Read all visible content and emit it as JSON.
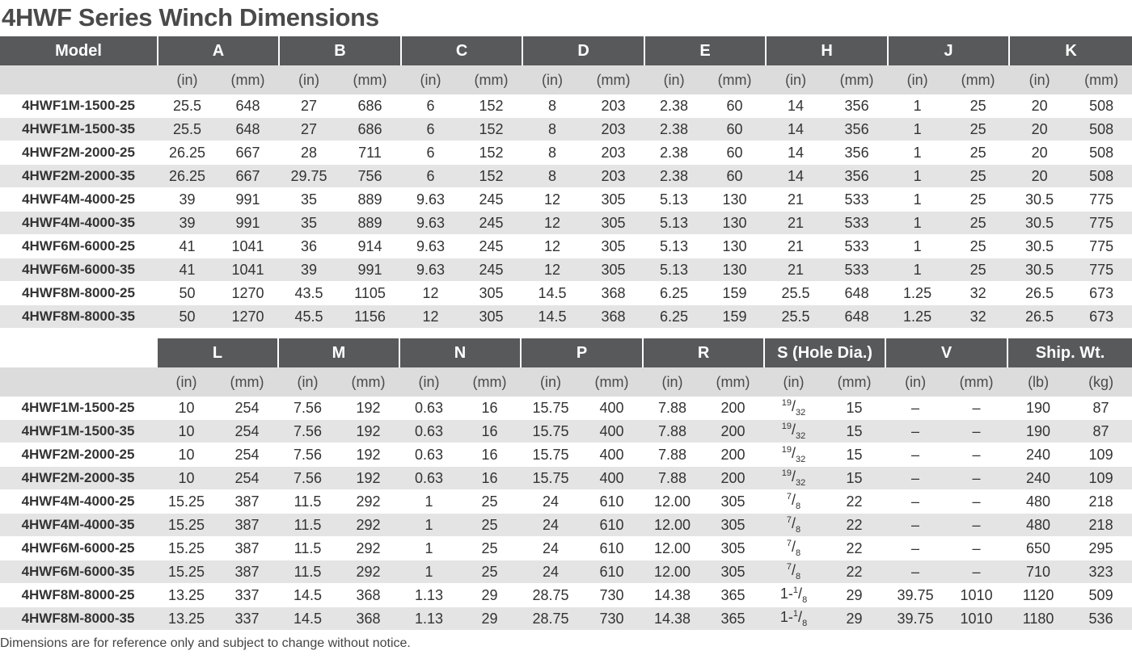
{
  "title": "4HWF Series Winch Dimensions",
  "units": {
    "in": "(in)",
    "mm": "(mm)",
    "lb": "(lb)",
    "kg": "(kg)"
  },
  "table1": {
    "model_header": "Model",
    "groups": [
      "A",
      "B",
      "C",
      "D",
      "E",
      "H",
      "J",
      "K"
    ],
    "rows": [
      [
        "4HWF1M-1500-25",
        "25.5",
        "648",
        "27",
        "686",
        "6",
        "152",
        "8",
        "203",
        "2.38",
        "60",
        "14",
        "356",
        "1",
        "25",
        "20",
        "508"
      ],
      [
        "4HWF1M-1500-35",
        "25.5",
        "648",
        "27",
        "686",
        "6",
        "152",
        "8",
        "203",
        "2.38",
        "60",
        "14",
        "356",
        "1",
        "25",
        "20",
        "508"
      ],
      [
        "4HWF2M-2000-25",
        "26.25",
        "667",
        "28",
        "711",
        "6",
        "152",
        "8",
        "203",
        "2.38",
        "60",
        "14",
        "356",
        "1",
        "25",
        "20",
        "508"
      ],
      [
        "4HWF2M-2000-35",
        "26.25",
        "667",
        "29.75",
        "756",
        "6",
        "152",
        "8",
        "203",
        "2.38",
        "60",
        "14",
        "356",
        "1",
        "25",
        "20",
        "508"
      ],
      [
        "4HWF4M-4000-25",
        "39",
        "991",
        "35",
        "889",
        "9.63",
        "245",
        "12",
        "305",
        "5.13",
        "130",
        "21",
        "533",
        "1",
        "25",
        "30.5",
        "775"
      ],
      [
        "4HWF4M-4000-35",
        "39",
        "991",
        "35",
        "889",
        "9.63",
        "245",
        "12",
        "305",
        "5.13",
        "130",
        "21",
        "533",
        "1",
        "25",
        "30.5",
        "775"
      ],
      [
        "4HWF6M-6000-25",
        "41",
        "1041",
        "36",
        "914",
        "9.63",
        "245",
        "12",
        "305",
        "5.13",
        "130",
        "21",
        "533",
        "1",
        "25",
        "30.5",
        "775"
      ],
      [
        "4HWF6M-6000-35",
        "41",
        "1041",
        "39",
        "991",
        "9.63",
        "245",
        "12",
        "305",
        "5.13",
        "130",
        "21",
        "533",
        "1",
        "25",
        "30.5",
        "775"
      ],
      [
        "4HWF8M-8000-25",
        "50",
        "1270",
        "43.5",
        "1105",
        "12",
        "305",
        "14.5",
        "368",
        "6.25",
        "159",
        "25.5",
        "648",
        "1.25",
        "32",
        "26.5",
        "673"
      ],
      [
        "4HWF8M-8000-35",
        "50",
        "1270",
        "45.5",
        "1156",
        "12",
        "305",
        "14.5",
        "368",
        "6.25",
        "159",
        "25.5",
        "648",
        "1.25",
        "32",
        "26.5",
        "673"
      ]
    ]
  },
  "table2": {
    "groups": [
      "L",
      "M",
      "N",
      "P",
      "R",
      "S (Hole Dia.)",
      "V",
      "Ship. Wt."
    ],
    "rows": [
      [
        "4HWF1M-1500-25",
        "10",
        "254",
        "7.56",
        "192",
        "0.63",
        "16",
        "15.75",
        "400",
        "7.88",
        "200",
        "19/32",
        "15",
        "–",
        "–",
        "190",
        "87"
      ],
      [
        "4HWF1M-1500-35",
        "10",
        "254",
        "7.56",
        "192",
        "0.63",
        "16",
        "15.75",
        "400",
        "7.88",
        "200",
        "19/32",
        "15",
        "–",
        "–",
        "190",
        "87"
      ],
      [
        "4HWF2M-2000-25",
        "10",
        "254",
        "7.56",
        "192",
        "0.63",
        "16",
        "15.75",
        "400",
        "7.88",
        "200",
        "19/32",
        "15",
        "–",
        "–",
        "240",
        "109"
      ],
      [
        "4HWF2M-2000-35",
        "10",
        "254",
        "7.56",
        "192",
        "0.63",
        "16",
        "15.75",
        "400",
        "7.88",
        "200",
        "19/32",
        "15",
        "–",
        "–",
        "240",
        "109"
      ],
      [
        "4HWF4M-4000-25",
        "15.25",
        "387",
        "11.5",
        "292",
        "1",
        "25",
        "24",
        "610",
        "12.00",
        "305",
        "7/8",
        "22",
        "–",
        "–",
        "480",
        "218"
      ],
      [
        "4HWF4M-4000-35",
        "15.25",
        "387",
        "11.5",
        "292",
        "1",
        "25",
        "24",
        "610",
        "12.00",
        "305",
        "7/8",
        "22",
        "–",
        "–",
        "480",
        "218"
      ],
      [
        "4HWF6M-6000-25",
        "15.25",
        "387",
        "11.5",
        "292",
        "1",
        "25",
        "24",
        "610",
        "12.00",
        "305",
        "7/8",
        "22",
        "–",
        "–",
        "650",
        "295"
      ],
      [
        "4HWF6M-6000-35",
        "15.25",
        "387",
        "11.5",
        "292",
        "1",
        "25",
        "24",
        "610",
        "12.00",
        "305",
        "7/8",
        "22",
        "–",
        "–",
        "710",
        "323"
      ],
      [
        "4HWF8M-8000-25",
        "13.25",
        "337",
        "14.5",
        "368",
        "1.13",
        "29",
        "28.75",
        "730",
        "14.38",
        "365",
        "1-1/8",
        "29",
        "39.75",
        "1010",
        "1120",
        "509"
      ],
      [
        "4HWF8M-8000-35",
        "13.25",
        "337",
        "14.5",
        "368",
        "1.13",
        "29",
        "28.75",
        "730",
        "14.38",
        "365",
        "1-1/8",
        "29",
        "39.75",
        "1010",
        "1180",
        "536"
      ]
    ]
  },
  "footnote": "Dimensions are for reference only and subject to change without notice."
}
